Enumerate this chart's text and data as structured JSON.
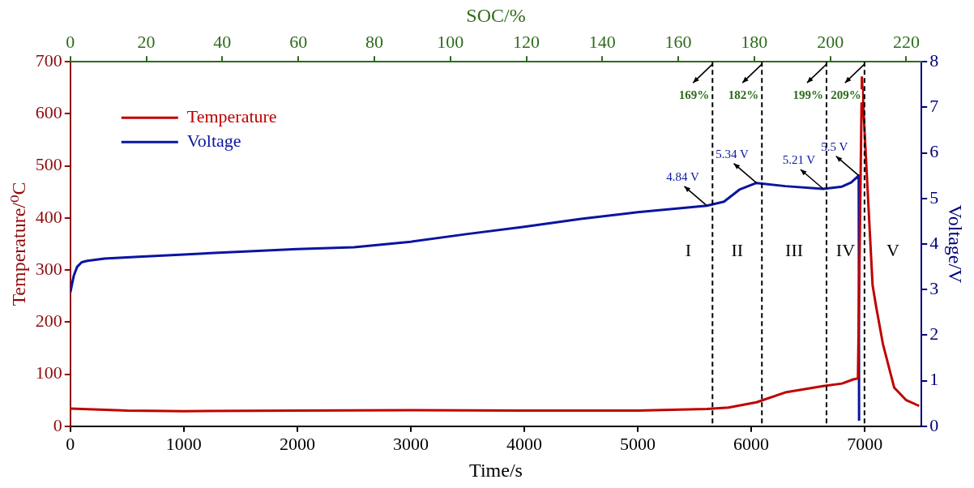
{
  "chart_data": {
    "type": "line",
    "xlabel": "Time/s",
    "ylabel": "Temperature/⁰C",
    "y2label": "Voltage/V",
    "x2label": "SOC/%",
    "xlim": [
      0,
      7500
    ],
    "xticks": [
      0,
      1000,
      2000,
      3000,
      4000,
      5000,
      6000,
      7000
    ],
    "ylim": [
      0,
      700
    ],
    "yticks": [
      0,
      100,
      200,
      300,
      400,
      500,
      600,
      700
    ],
    "y2lim": [
      0,
      8
    ],
    "y2ticks": [
      0,
      1,
      2,
      3,
      4,
      5,
      6,
      7,
      8
    ],
    "x2lim": [
      0,
      224
    ],
    "x2ticks": [
      0,
      20,
      40,
      60,
      80,
      100,
      120,
      140,
      160,
      180,
      200,
      220
    ],
    "grid": false,
    "legend": "top left",
    "line_style": "solid",
    "marker": "none",
    "series": [
      {
        "name": "Temperature",
        "color": "#c00000",
        "x": [
          0,
          500,
          1000,
          2000,
          3000,
          4000,
          5000,
          5610,
          5800,
          6046,
          6300,
          6634,
          6800,
          6900,
          6940,
          6975,
          7000,
          7069,
          7100,
          7160,
          7260,
          7366,
          7480
        ],
        "values": [
          34,
          30,
          29,
          30,
          31,
          30,
          30,
          33,
          36,
          46,
          65,
          77,
          82,
          90,
          92,
          670,
          560,
          271,
          230,
          158,
          74,
          50,
          39
        ]
      },
      {
        "name": "Voltage",
        "color": "#0a14a0",
        "axis": "y2",
        "x": [
          0,
          30,
          60,
          100,
          150,
          300,
          600,
          1000,
          1500,
          2000,
          2500,
          3000,
          3500,
          4000,
          4500,
          5000,
          5610,
          5760,
          5900,
          6046,
          6300,
          6634,
          6800,
          6880,
          6947,
          6950
        ],
        "values": [
          2.94,
          3.3,
          3.5,
          3.6,
          3.63,
          3.68,
          3.72,
          3.77,
          3.83,
          3.89,
          3.93,
          4.05,
          4.22,
          4.38,
          4.55,
          4.7,
          4.84,
          4.93,
          5.2,
          5.34,
          5.27,
          5.21,
          5.26,
          5.35,
          5.5,
          0.12
        ],
        "value_labels": [
          null,
          null,
          null,
          null,
          null,
          null,
          null,
          null,
          null,
          null,
          null,
          null,
          null,
          null,
          null,
          null,
          "4.84 V",
          null,
          null,
          "5.34 V",
          null,
          "5.21 V",
          null,
          null,
          "5.5 V",
          null
        ]
      }
    ],
    "ref_lines": [
      {
        "axis": "x2",
        "value": 169,
        "label": "169%",
        "color": "#000000",
        "line_style": "dashed"
      },
      {
        "axis": "x2",
        "value": 182,
        "label": "182%",
        "color": "#000000",
        "line_style": "dashed"
      },
      {
        "axis": "x2",
        "value": 199,
        "label": "199%",
        "color": "#000000",
        "line_style": "dashed"
      },
      {
        "axis": "x2",
        "value": 209,
        "label": "209%",
        "color": "#000000",
        "line_style": "dashed"
      }
    ],
    "annotations": [
      "I",
      "II",
      "III",
      "IV",
      "V"
    ]
  }
}
